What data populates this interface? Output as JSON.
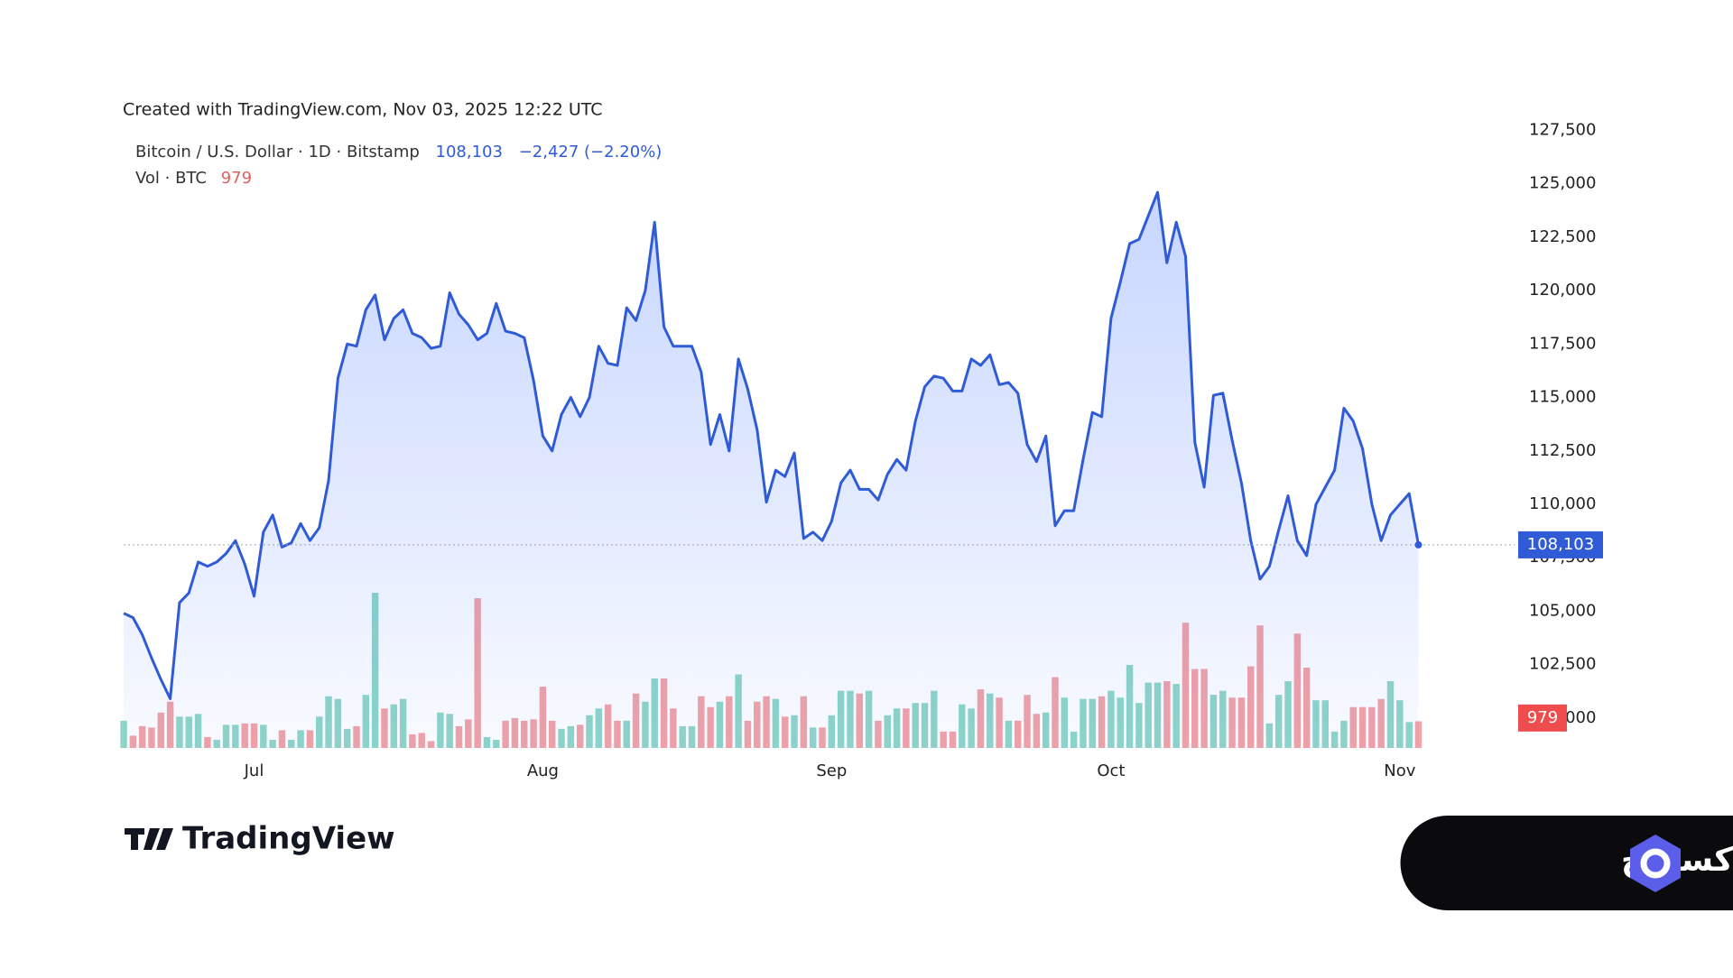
{
  "header": {
    "created": "Created with TradingView.com, Nov 03, 2025 12:22 UTC"
  },
  "chart_data": {
    "type": "line",
    "categories": [
      null,
      null,
      null,
      null,
      null,
      null,
      null,
      null,
      null,
      null,
      null,
      null,
      null,
      null,
      "Jul",
      null,
      null,
      null,
      null,
      null,
      null,
      null,
      null,
      null,
      null,
      null,
      null,
      null,
      null,
      null,
      null,
      null,
      null,
      null,
      null,
      null,
      null,
      null,
      null,
      null,
      null,
      null,
      null,
      null,
      null,
      "Aug",
      null,
      null,
      null,
      null,
      null,
      null,
      null,
      null,
      null,
      null,
      null,
      null,
      null,
      null,
      null,
      null,
      null,
      null,
      null,
      null,
      null,
      null,
      null,
      null,
      null,
      null,
      null,
      null,
      null,
      null,
      "Sep",
      null,
      null,
      null,
      null,
      null,
      null,
      null,
      null,
      null,
      null,
      null,
      null,
      null,
      null,
      null,
      null,
      null,
      null,
      null,
      null,
      null,
      null,
      null,
      null,
      null,
      null,
      null,
      null,
      null,
      "Oct",
      null,
      null,
      null,
      null,
      null,
      null,
      null,
      null,
      null,
      null,
      null,
      null,
      null,
      null,
      null,
      null,
      null,
      null,
      null,
      null,
      null,
      null,
      null,
      null,
      null,
      null,
      null,
      null,
      null,
      null,
      "Nov",
      null,
      null
    ],
    "series": [
      {
        "name": "Bitcoin / U.S. Dollar · 1D · Bitstamp",
        "type": "line",
        "color": "#2f5bd7",
        "last_label": "108,103",
        "change_label": "−2,427 (−2.20%)",
        "values": [
          104900,
          104700,
          103900,
          102800,
          101800,
          100900,
          105400,
          105850,
          107300,
          107100,
          107300,
          107700,
          108300,
          107200,
          105700,
          108700,
          109500,
          108000,
          108200,
          109100,
          108300,
          108900,
          111100,
          115900,
          117500,
          117400,
          119100,
          119800,
          117700,
          118700,
          119100,
          118000,
          117800,
          117300,
          117400,
          119900,
          118900,
          118400,
          117700,
          118000,
          119400,
          118100,
          118000,
          117800,
          115800,
          113200,
          112500,
          114200,
          115000,
          114100,
          115000,
          117400,
          116600,
          116500,
          119200,
          118600,
          120000,
          123200,
          118300,
          117400,
          117400,
          117400,
          116200,
          112800,
          114200,
          112500,
          116800,
          115400,
          113500,
          110100,
          111600,
          111300,
          112400,
          108400,
          108700,
          108300,
          109200,
          111000,
          111600,
          110700,
          110700,
          110200,
          111400,
          112100,
          111600,
          113900,
          115500,
          116000,
          115900,
          115300,
          115300,
          116800,
          116500,
          117000,
          115600,
          115700,
          115200,
          112800,
          112000,
          113200,
          109000,
          109700,
          109700,
          112100,
          114300,
          114100,
          118700,
          120400,
          122200,
          122400,
          123500,
          124600,
          121300,
          123200,
          121600,
          112900,
          110800,
          115100,
          115200,
          113000,
          111000,
          108300,
          106500,
          107100,
          108800,
          110400,
          108300,
          107600,
          110000,
          110800,
          111600,
          114500,
          113900,
          112600,
          110000,
          108300,
          109500,
          110000,
          110500,
          108103
        ]
      },
      {
        "name": "Vol · BTC",
        "type": "bar",
        "axis": "y2",
        "up_color": "#8fd6c8",
        "down_color": "#f2a3a6",
        "values": [
          1000,
          450,
          800,
          750,
          1300,
          1700,
          1150,
          1150,
          1250,
          400,
          300,
          850,
          850,
          900,
          900,
          850,
          300,
          650,
          300,
          650,
          650,
          1150,
          1900,
          1800,
          700,
          800,
          1950,
          5700,
          1450,
          1600,
          1800,
          500,
          550,
          250,
          1300,
          1250,
          800,
          1050,
          5500,
          400,
          300,
          1000,
          1100,
          1000,
          1050,
          2250,
          1000,
          700,
          800,
          850,
          1200,
          1450,
          1600,
          1000,
          1000,
          2000,
          1700,
          2550,
          2550,
          1450,
          800,
          800,
          1900,
          1500,
          1700,
          1900,
          2700,
          1000,
          1700,
          1900,
          1800,
          1150,
          1200,
          1900,
          750,
          750,
          1200,
          2100,
          2100,
          2000,
          2100,
          1000,
          1200,
          1450,
          1450,
          1650,
          1650,
          2100,
          600,
          600,
          1600,
          1450,
          2150,
          2000,
          1850,
          1000,
          1000,
          1950,
          1250,
          1300,
          2600,
          1850,
          600,
          1800,
          1800,
          1900,
          2100,
          1850,
          3050,
          1650,
          2400,
          2400,
          2450,
          2350,
          4600,
          2900,
          2900,
          1950,
          2100,
          1850,
          1850,
          3000,
          4500,
          900,
          1950,
          2450,
          4200,
          2950,
          1750,
          1750,
          600,
          1000,
          1500,
          1500,
          1500,
          1800,
          2450,
          1750,
          950,
          979
        ]
      }
    ],
    "ylim": [
      98600,
      127900
    ],
    "yticks": [
      {
        "value": 100000,
        "label": "100,000"
      },
      {
        "value": 102500,
        "label": "102,500"
      },
      {
        "value": 105000,
        "label": "105,000"
      },
      {
        "value": 107500,
        "label": "107,500"
      },
      {
        "value": 110000,
        "label": "110,000"
      },
      {
        "value": 112500,
        "label": "112,500"
      },
      {
        "value": 115000,
        "label": "115,000"
      },
      {
        "value": 117500,
        "label": "117,500"
      },
      {
        "value": 120000,
        "label": "120,000"
      },
      {
        "value": 122500,
        "label": "122,500"
      },
      {
        "value": 125000,
        "label": "125,000"
      },
      {
        "value": 127500,
        "label": "127,500"
      }
    ],
    "y2lim": [
      0,
      23000
    ],
    "grid": false
  },
  "branding": {
    "logo": "TradingView",
    "badge": "اوکی اکسچنج"
  }
}
